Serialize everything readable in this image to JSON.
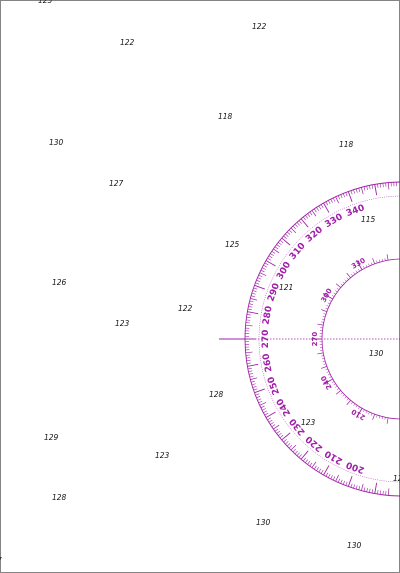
{
  "colors": {
    "background": "#ffffff",
    "rose": "#a020a8",
    "soundings": "#111111",
    "border": "#333333"
  },
  "soundings": [
    {
      "value": "125"
    },
    {
      "value": "122"
    },
    {
      "value": "122"
    },
    {
      "value": "118"
    },
    {
      "value": "130"
    },
    {
      "value": "118"
    },
    {
      "value": "127"
    },
    {
      "value": "115"
    },
    {
      "value": "125"
    },
    {
      "value": "126"
    },
    {
      "value": "121"
    },
    {
      "value": "122"
    },
    {
      "value": "123"
    },
    {
      "value": "130"
    },
    {
      "value": "128"
    },
    {
      "value": "123"
    },
    {
      "value": "129"
    },
    {
      "value": "123"
    },
    {
      "value": "128"
    },
    {
      "value": "130"
    },
    {
      "value": "130"
    },
    {
      "value": "12"
    },
    {
      "value": "7"
    }
  ],
  "compass_rose": {
    "outer_labels": [
      "200",
      "210",
      "220",
      "230",
      "240",
      "250",
      "260",
      "270",
      "280",
      "290",
      "300",
      "310",
      "320",
      "330",
      "340"
    ],
    "inner_labels": [
      "210",
      "240",
      "270",
      "300",
      "330"
    ]
  }
}
